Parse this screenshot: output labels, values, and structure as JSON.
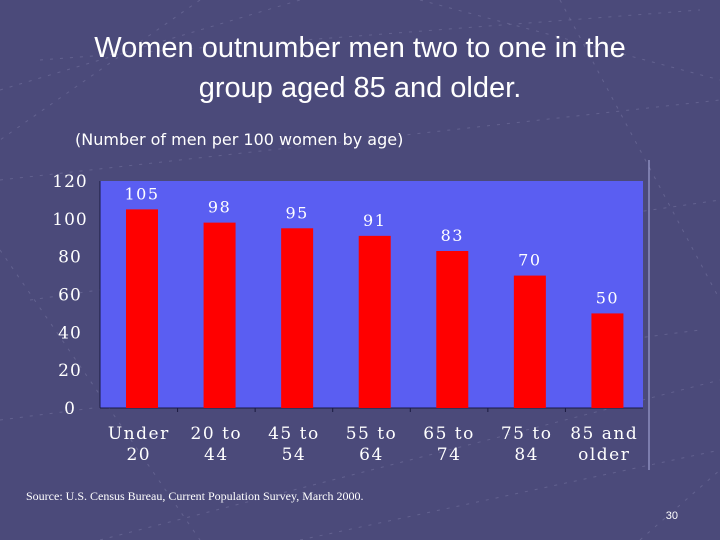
{
  "slide": {
    "title_line1": "Women outnumber men two to one in the",
    "title_line2": "group aged 85 and older.",
    "source": "Source: U.S. Census Bureau, Current Population Survey, March 2000.",
    "page_number": "30"
  },
  "colors": {
    "background": "#4b4a7a",
    "plot_area": "#5a5ef2",
    "bar": "#ff0000",
    "text": "#ffffff"
  },
  "chart_data": {
    "type": "bar",
    "title": "(Number of men per 100 women by age)",
    "categories": [
      [
        "Under",
        "20"
      ],
      [
        "20 to",
        "44"
      ],
      [
        "45 to",
        "54"
      ],
      [
        "55 to",
        "64"
      ],
      [
        "65 to",
        "74"
      ],
      [
        "75 to",
        "84"
      ],
      [
        "85 and",
        "older"
      ]
    ],
    "values": [
      105,
      98,
      95,
      91,
      83,
      70,
      50
    ],
    "data_labels": [
      "105",
      "98",
      "95",
      "91",
      "83",
      "70",
      "50"
    ],
    "ylim": [
      0,
      120
    ],
    "yticks": [
      0,
      20,
      40,
      60,
      80,
      100,
      120
    ],
    "xlabel": "",
    "ylabel": "",
    "grid": false,
    "legend": "none"
  }
}
